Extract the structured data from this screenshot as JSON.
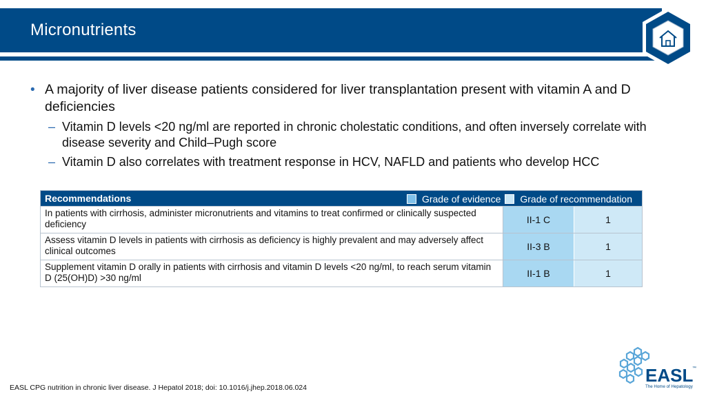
{
  "slide": {
    "title": "Micronutrients"
  },
  "bullets": {
    "main": "A majority of liver disease patients considered for liver transplantation present with vitamin A and D deficiencies",
    "sub": [
      "Vitamin D levels <20 ng/ml are reported in chronic cholestatic conditions, and often inversely correlate with disease severity and Child–Pugh score",
      "Vitamin D also correlates with treatment response in HCV, NAFLD and patients who develop HCC"
    ],
    "dot_glyph": "•",
    "dash_glyph": "–"
  },
  "recommendations": {
    "header": "Recommendations",
    "legend_evidence": "Grade of evidence",
    "legend_recommendation": "Grade of recommendation",
    "rows": [
      {
        "text": "In patients with cirrhosis, administer micronutrients and vitamins to treat confirmed or clinically suspected deficiency",
        "evidence": "II-1 C",
        "grade": "1"
      },
      {
        "text": "Assess vitamin D levels in patients with cirrhosis as deficiency is highly prevalent and may adversely affect clinical outcomes",
        "evidence": "II-3 B",
        "grade": "1"
      },
      {
        "text": "Supplement vitamin D orally in patients with cirrhosis and vitamin D levels <20 ng/ml, to reach serum vitamin D (25(OH)D) >30 ng/ml",
        "evidence": "II-1 B",
        "grade": "1"
      }
    ]
  },
  "footer": {
    "citation": "EASL CPG nutrition in chronic liver disease. J Hepatol 2018; doi: 10.1016/j.jhep.2018.06.024"
  },
  "logo": {
    "name": "EASL",
    "tagline": "The Home of Hepatology",
    "tm": "™"
  },
  "icons": {
    "home": "home-icon"
  },
  "colors": {
    "brand_blue": "#004a87",
    "evidence_cell": "#a9d8f2",
    "recommendation_cell": "#cfe9f7"
  }
}
